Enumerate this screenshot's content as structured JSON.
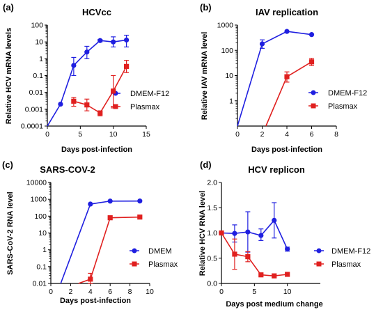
{
  "colors": {
    "series1": "#1f1fe0",
    "series2": "#e0201f",
    "axis": "#000000"
  },
  "chart_data": [
    {
      "type": "line",
      "panel_label": "(a)",
      "title": "HCVcc",
      "xlabel": "Days post-infection",
      "ylabel": "Relative HCV mRNA levels",
      "xlim": [
        0,
        15
      ],
      "ylim": [
        0.0001,
        100
      ],
      "yscale": "log",
      "xticks": [
        0,
        5,
        10,
        15
      ],
      "yticks": [
        0.0001,
        0.001,
        0.01,
        0.1,
        1,
        10,
        100
      ],
      "ytick_labels": [
        "0.0001",
        "0.001",
        "0.01",
        "0.1",
        "1",
        "10",
        "100"
      ],
      "legend_position": "bottom-right",
      "series": [
        {
          "name": "DMEM-F12",
          "marker": "circle",
          "x": [
            0,
            2,
            4,
            6,
            8,
            10,
            12
          ],
          "y": [
            0.0001,
            0.002,
            0.4,
            2.5,
            12,
            10,
            13
          ],
          "err_low": [
            null,
            null,
            0.1,
            1,
            10,
            5,
            5
          ],
          "err_high": [
            null,
            null,
            1.2,
            5.5,
            14,
            20,
            25
          ]
        },
        {
          "name": "Plasmax",
          "marker": "square",
          "x": [
            4,
            6,
            8,
            10,
            12
          ],
          "y": [
            0.003,
            0.0018,
            0.0006,
            0.012,
            0.35
          ],
          "err_low": [
            0.0015,
            0.0008,
            0.0004,
            0.0012,
            0.15
          ],
          "err_high": [
            0.005,
            0.004,
            0.0008,
            0.1,
            0.8
          ]
        }
      ]
    },
    {
      "type": "line",
      "panel_label": "(b)",
      "title": "IAV replication",
      "xlabel": "Days post-infection",
      "ylabel": "Relative IAV mRNA level",
      "xlim": [
        0,
        8
      ],
      "ylim": [
        0.1,
        1000
      ],
      "yscale": "log",
      "xticks": [
        0,
        2,
        4,
        6,
        8
      ],
      "yticks": [
        1,
        10,
        100,
        1000
      ],
      "ytick_labels": [
        "1",
        "10",
        "100",
        "1000"
      ],
      "legend_position": "right",
      "series": [
        {
          "name": "DMEM-F12",
          "marker": "circle",
          "x": [
            0,
            2,
            4,
            6
          ],
          "y": [
            0.1,
            180,
            560,
            420
          ],
          "err_low": [
            null,
            120,
            null,
            null
          ],
          "err_high": [
            null,
            260,
            null,
            null
          ]
        },
        {
          "name": "Plasmax",
          "marker": "square",
          "x": [
            2.3,
            4,
            6
          ],
          "y": [
            0.1,
            9,
            35
          ],
          "err_low": [
            null,
            5.5,
            25
          ],
          "err_high": [
            null,
            14,
            48
          ]
        }
      ]
    },
    {
      "type": "line",
      "panel_label": "(c)",
      "title": "SARS-COV-2",
      "xlabel": "Days post-infection",
      "ylabel": "SARS-CoV-2 RNA level",
      "xlim": [
        0,
        10
      ],
      "ylim": [
        0.01,
        10000
      ],
      "yscale": "log",
      "xticks": [
        0,
        2,
        4,
        6,
        8,
        10
      ],
      "yticks": [
        0.01,
        0.1,
        1,
        10,
        100,
        1000,
        10000
      ],
      "ytick_labels": [
        "0.01",
        "0.1",
        "1",
        "10",
        "100",
        "1000",
        "10000"
      ],
      "legend_position": "bottom-right",
      "series": [
        {
          "name": "DMEM",
          "marker": "circle",
          "x": [
            1,
            4,
            6,
            9
          ],
          "y": [
            0.01,
            520,
            780,
            790
          ],
          "err_low": [
            null,
            null,
            null,
            null
          ],
          "err_high": [
            null,
            null,
            null,
            null
          ]
        },
        {
          "name": "Plasmax",
          "marker": "square",
          "x": [
            2.8,
            4,
            6,
            9
          ],
          "y": [
            0.01,
            0.018,
            80,
            88
          ],
          "err_low": [
            null,
            0.01,
            null,
            null
          ],
          "err_high": [
            null,
            0.04,
            null,
            null
          ]
        }
      ]
    },
    {
      "type": "line",
      "panel_label": "(d)",
      "title": "HCV replicon",
      "xlabel": "Days post medium change",
      "ylabel": "Relative HCV RNA level",
      "xlim": [
        0,
        15
      ],
      "ylim": [
        0,
        2.0
      ],
      "yscale": "linear",
      "xticks": [
        0,
        5,
        10
      ],
      "yticks": [
        0,
        0.5,
        1.0,
        1.5,
        2.0
      ],
      "ytick_labels": [
        "0.0",
        "0.5",
        "1.0",
        "1.5",
        "2.0"
      ],
      "legend_position": "right",
      "series": [
        {
          "name": "DMEM-F12",
          "marker": "circle",
          "x": [
            0,
            2,
            4,
            6,
            8,
            10
          ],
          "y": [
            1.0,
            0.99,
            1.02,
            0.95,
            1.25,
            0.68
          ],
          "err_low": [
            null,
            0.82,
            0.62,
            0.85,
            0.9,
            0.64
          ],
          "err_high": [
            null,
            1.16,
            1.42,
            1.08,
            1.6,
            0.72
          ]
        },
        {
          "name": "Plasmax",
          "marker": "square",
          "x": [
            0,
            2,
            4,
            6,
            8,
            10
          ],
          "y": [
            1.0,
            0.58,
            0.53,
            0.17,
            0.15,
            0.18
          ],
          "err_low": [
            null,
            0.28,
            0.43,
            null,
            null,
            null
          ],
          "err_high": [
            null,
            0.88,
            0.63,
            null,
            null,
            null
          ]
        }
      ]
    }
  ]
}
